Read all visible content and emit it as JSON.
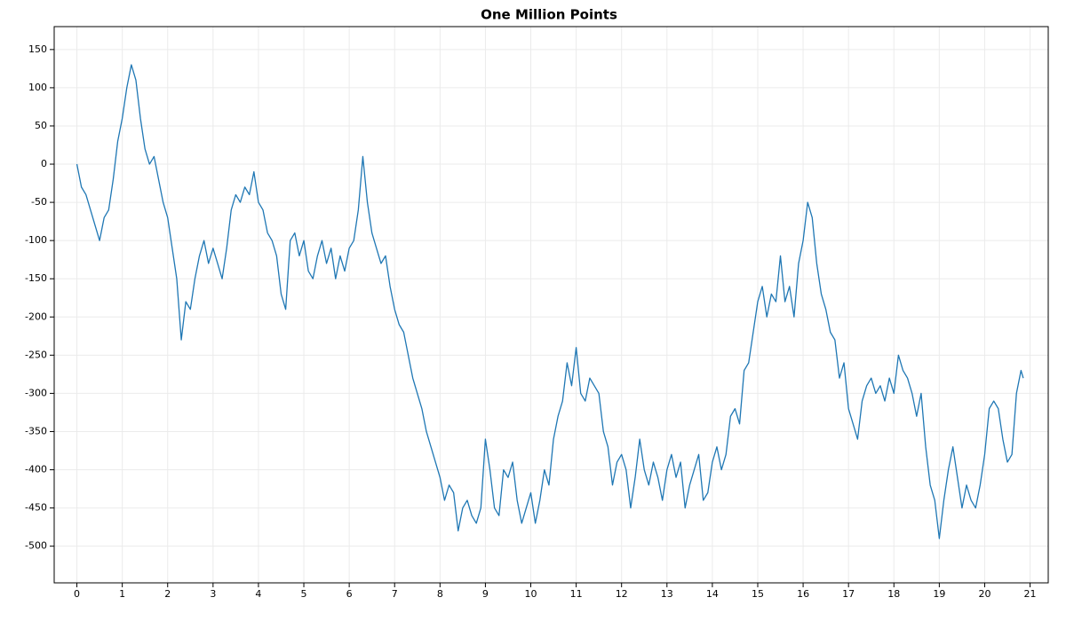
{
  "chart_data": {
    "type": "line",
    "title": "One Million Points",
    "color": "#1f77b4",
    "x": [
      0,
      0.1,
      0.2,
      0.3,
      0.4,
      0.5,
      0.6,
      0.7,
      0.8,
      0.9,
      1.0,
      1.1,
      1.2,
      1.3,
      1.4,
      1.5,
      1.6,
      1.7,
      1.8,
      1.9,
      2.0,
      2.1,
      2.2,
      2.3,
      2.4,
      2.5,
      2.6,
      2.7,
      2.8,
      2.9,
      3.0,
      3.1,
      3.2,
      3.3,
      3.4,
      3.5,
      3.6,
      3.7,
      3.8,
      3.9,
      4.0,
      4.1,
      4.2,
      4.3,
      4.4,
      4.5,
      4.6,
      4.7,
      4.8,
      4.9,
      5.0,
      5.1,
      5.2,
      5.3,
      5.4,
      5.5,
      5.6,
      5.7,
      5.8,
      5.9,
      6.0,
      6.1,
      6.2,
      6.3,
      6.4,
      6.5,
      6.6,
      6.7,
      6.8,
      6.9,
      7.0,
      7.1,
      7.2,
      7.3,
      7.4,
      7.5,
      7.6,
      7.7,
      7.8,
      7.9,
      8.0,
      8.1,
      8.2,
      8.3,
      8.4,
      8.5,
      8.6,
      8.7,
      8.8,
      8.9,
      9.0,
      9.1,
      9.2,
      9.3,
      9.4,
      9.5,
      9.6,
      9.7,
      9.8,
      9.9,
      10.0,
      10.1,
      10.2,
      10.3,
      10.4,
      10.5,
      10.6,
      10.7,
      10.8,
      10.9,
      11.0,
      11.1,
      11.2,
      11.3,
      11.4,
      11.5,
      11.6,
      11.7,
      11.8,
      11.9,
      12.0,
      12.1,
      12.2,
      12.3,
      12.4,
      12.5,
      12.6,
      12.7,
      12.8,
      12.9,
      13.0,
      13.1,
      13.2,
      13.3,
      13.4,
      13.5,
      13.6,
      13.7,
      13.8,
      13.9,
      14.0,
      14.1,
      14.2,
      14.3,
      14.4,
      14.5,
      14.6,
      14.7,
      14.8,
      14.9,
      15.0,
      15.1,
      15.2,
      15.3,
      15.4,
      15.5,
      15.6,
      15.7,
      15.8,
      15.9,
      16.0,
      16.1,
      16.2,
      16.3,
      16.4,
      16.5,
      16.6,
      16.7,
      16.8,
      16.9,
      17.0,
      17.1,
      17.2,
      17.3,
      17.4,
      17.5,
      17.6,
      17.7,
      17.8,
      17.9,
      18.0,
      18.1,
      18.2,
      18.3,
      18.4,
      18.5,
      18.6,
      18.7,
      18.8,
      18.9,
      19.0,
      19.1,
      19.2,
      19.3,
      19.4,
      19.5,
      19.6,
      19.7,
      19.8,
      19.9,
      20.0,
      20.1,
      20.2,
      20.3,
      20.4,
      20.5,
      20.6,
      20.7,
      20.8,
      20.85
    ],
    "values": [
      0,
      -30,
      -40,
      -60,
      -80,
      -100,
      -70,
      -60,
      -20,
      30,
      60,
      100,
      130,
      110,
      60,
      20,
      0,
      10,
      -20,
      -50,
      -70,
      -110,
      -150,
      -230,
      -180,
      -190,
      -150,
      -120,
      -100,
      -130,
      -110,
      -130,
      -150,
      -110,
      -60,
      -40,
      -50,
      -30,
      -40,
      -10,
      -50,
      -60,
      -90,
      -100,
      -120,
      -170,
      -190,
      -100,
      -90,
      -120,
      -100,
      -140,
      -150,
      -120,
      -100,
      -130,
      -110,
      -150,
      -120,
      -140,
      -110,
      -100,
      -60,
      10,
      -50,
      -90,
      -110,
      -130,
      -120,
      -160,
      -190,
      -210,
      -220,
      -250,
      -280,
      -300,
      -320,
      -350,
      -370,
      -390,
      -410,
      -440,
      -420,
      -430,
      -480,
      -450,
      -440,
      -460,
      -470,
      -450,
      -360,
      -400,
      -450,
      -460,
      -400,
      -410,
      -390,
      -440,
      -470,
      -450,
      -430,
      -470,
      -440,
      -400,
      -420,
      -360,
      -330,
      -310,
      -260,
      -290,
      -240,
      -300,
      -310,
      -280,
      -290,
      -300,
      -350,
      -370,
      -420,
      -390,
      -380,
      -400,
      -450,
      -410,
      -360,
      -400,
      -420,
      -390,
      -410,
      -440,
      -400,
      -380,
      -410,
      -390,
      -450,
      -420,
      -400,
      -380,
      -440,
      -430,
      -390,
      -370,
      -400,
      -380,
      -330,
      -320,
      -340,
      -270,
      -260,
      -220,
      -180,
      -160,
      -200,
      -170,
      -180,
      -120,
      -180,
      -160,
      -200,
      -130,
      -100,
      -50,
      -70,
      -130,
      -170,
      -190,
      -220,
      -230,
      -280,
      -260,
      -320,
      -340,
      -360,
      -310,
      -290,
      -280,
      -300,
      -290,
      -310,
      -280,
      -300,
      -250,
      -270,
      -280,
      -300,
      -330,
      -300,
      -370,
      -420,
      -440,
      -490,
      -440,
      -400,
      -370,
      -410,
      -450,
      -420,
      -440,
      -450,
      -420,
      -380,
      -320,
      -310,
      -320,
      -360,
      -390,
      -380,
      -300,
      -270,
      -280
    ],
    "xlim": [
      -0.5,
      21.4
    ],
    "ylim": [
      -548,
      180
    ],
    "xticks": [
      0,
      1,
      2,
      3,
      4,
      5,
      6,
      7,
      8,
      9,
      10,
      11,
      12,
      13,
      14,
      15,
      16,
      17,
      18,
      19,
      20,
      21
    ],
    "yticks": [
      -500,
      -450,
      -400,
      -350,
      -300,
      -250,
      -200,
      -150,
      -100,
      -50,
      0,
      50,
      100,
      150
    ],
    "grid": true
  }
}
